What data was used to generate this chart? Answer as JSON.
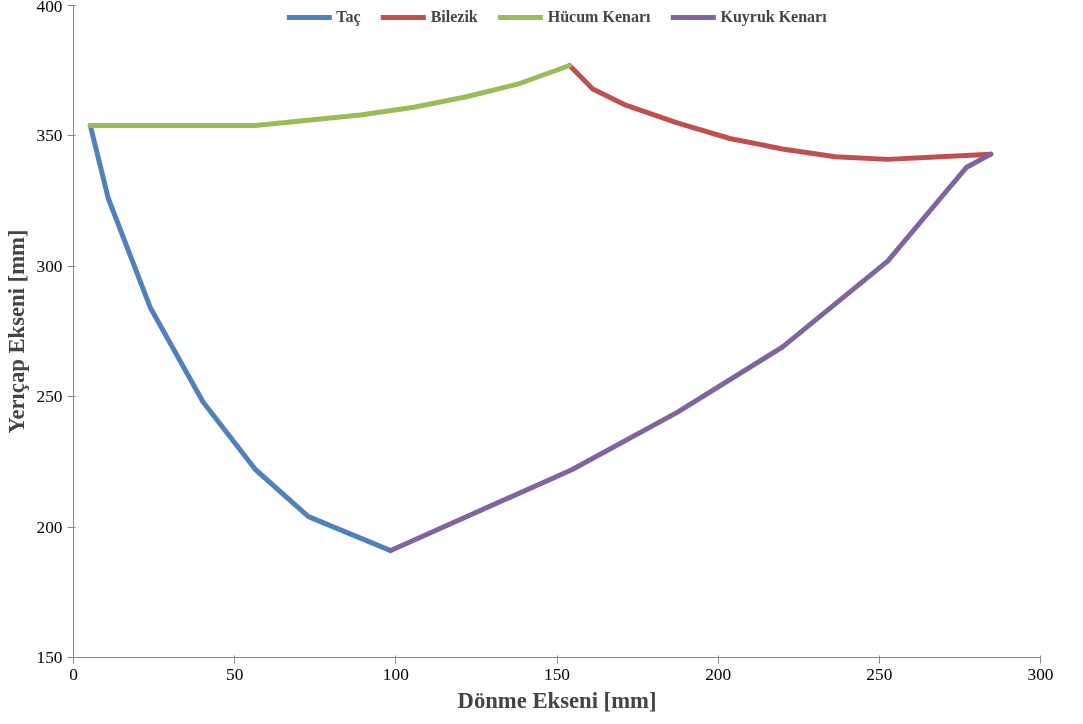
{
  "chart_data": {
    "type": "line",
    "xlabel": "Dönme Ekseni [mm]",
    "ylabel": "Yerıçap Ekseni [mm]",
    "xlim": [
      0,
      300
    ],
    "xticks": [
      0,
      50,
      100,
      150,
      200,
      250,
      300
    ],
    "ylim": [
      150,
      400
    ],
    "yticks": [
      150,
      200,
      250,
      300,
      350,
      400
    ],
    "grid": false,
    "legend": "top",
    "marker": "none",
    "line_style": "solid",
    "series": [
      {
        "name": "Taç",
        "color": "#4f81bd",
        "x": [
          5.2,
          10.8,
          23.9,
          40.2,
          56.5,
          72.9,
          98.4
        ],
        "values": [
          354,
          326,
          284,
          248,
          222,
          204,
          191
        ]
      },
      {
        "name": "Bilezik",
        "color": "#c0504d",
        "x": [
          153.9,
          161.1,
          170.9,
          187.3,
          203.6,
          219.9,
          236.3,
          252.6,
          268.9,
          284.6
        ],
        "values": [
          377,
          368,
          362,
          355,
          349,
          345,
          342,
          341,
          342,
          343
        ]
      },
      {
        "name": "Hücum Kenarı",
        "color": "#9bbb59",
        "x": [
          5.2,
          56.5,
          89,
          105.6,
          121.9,
          138.2,
          153.9
        ],
        "values": [
          354,
          354,
          358,
          361,
          365,
          370,
          377
        ]
      },
      {
        "name": "Kuyruk Kenarı",
        "color": "#8064a2",
        "x": [
          98.4,
          121.9,
          154.6,
          187.3,
          219.9,
          252.6,
          268.9,
          277.1,
          284.6
        ],
        "values": [
          191,
          204,
          222,
          244,
          269,
          302,
          326,
          338,
          343
        ]
      }
    ]
  }
}
